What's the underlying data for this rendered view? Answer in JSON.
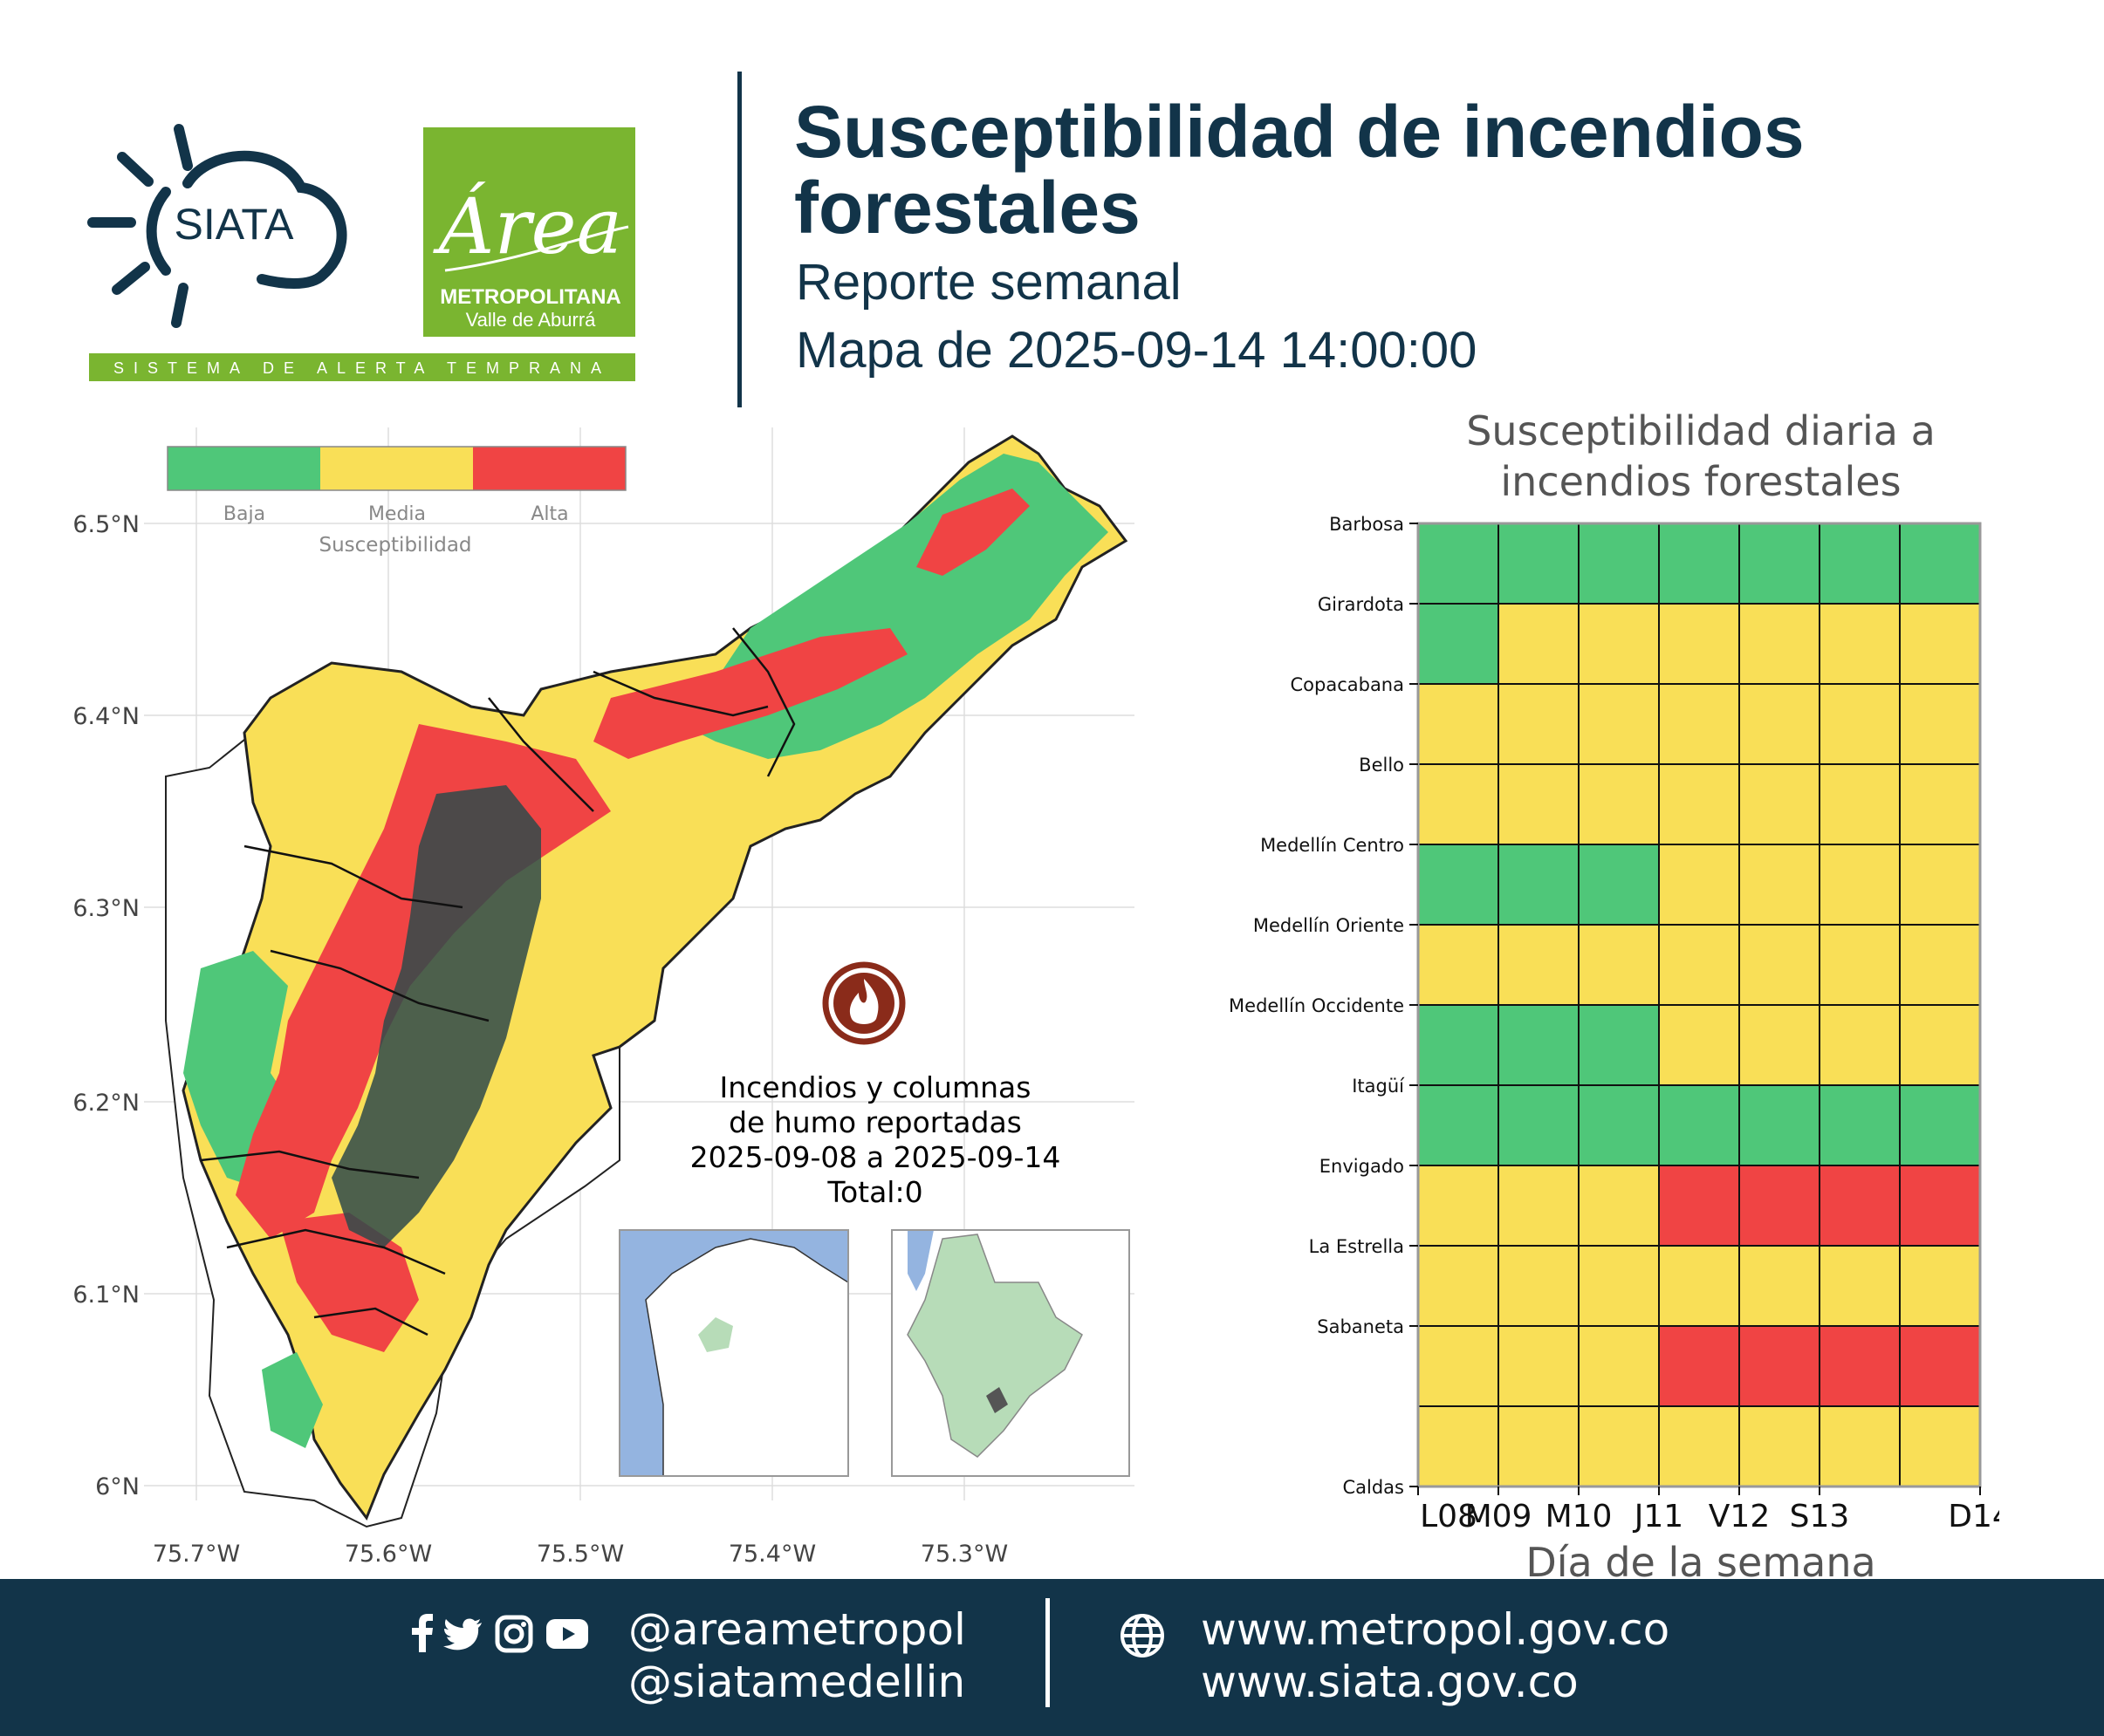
{
  "header": {
    "title": "Susceptibilidad de incendios forestales",
    "subtitle": "Reporte semanal",
    "date_label": "Mapa de 2025-09-14 14:00:00",
    "siata_logo_text": "SIATA",
    "siata_tagline": "SISTEMA DE ALERTA TEMPRANA",
    "area_logo_text": "Área",
    "area_logo_line1": "METROPOLITANA",
    "area_logo_line2": "Valle de Aburrá"
  },
  "colors": {
    "navy": "#123449",
    "baja": "#4fc779",
    "media": "#f9df57",
    "alta": "#f04444",
    "brand_green": "#7ab530"
  },
  "map": {
    "legend": {
      "title": "Susceptibilidad",
      "items": [
        {
          "label": "Baja",
          "color": "#4fc779"
        },
        {
          "label": "Media",
          "color": "#f9df57"
        },
        {
          "label": "Alta",
          "color": "#f04444"
        }
      ]
    },
    "lat_ticks": [
      "6.5°N",
      "6.4°N",
      "6.3°N",
      "6.2°N",
      "6.1°N",
      "6°N"
    ],
    "lon_ticks": [
      "75.7°W",
      "75.6°W",
      "75.5°W",
      "75.4°W",
      "75.3°W"
    ],
    "fire_icon": "fire-circle-icon",
    "fires_caption": [
      "Incendios y columnas",
      "de humo reportadas",
      "2025-09-08 a 2025-09-14",
      "Total:0"
    ],
    "fires_total": 0
  },
  "chart_data": {
    "type": "heatmap",
    "title": "Susceptibilidad diaria a incendios forestales",
    "title_lines": [
      "Susceptibilidad diaria a",
      "incendios forestales"
    ],
    "xlabel": "Día de la semana",
    "ylabel": "",
    "x": [
      "L08",
      "M09",
      "M10",
      "J11",
      "V12",
      "S13",
      "D14"
    ],
    "y": [
      "Barbosa",
      "Girardota",
      "Copacabana",
      "Bello",
      "Medellín Centro",
      "Medellín Oriente",
      "Medellín Occidente",
      "Itagüí",
      "Envigado",
      "La Estrella",
      "Sabaneta",
      "Caldas"
    ],
    "levels": [
      "Baja",
      "Media",
      "Alta"
    ],
    "level_colors": {
      "Baja": "#4fc779",
      "Media": "#f9df57",
      "Alta": "#f04444"
    },
    "values": [
      [
        "Baja",
        "Baja",
        "Baja",
        "Baja",
        "Baja",
        "Baja",
        "Baja"
      ],
      [
        "Baja",
        "Media",
        "Media",
        "Media",
        "Media",
        "Media",
        "Media"
      ],
      [
        "Media",
        "Media",
        "Media",
        "Media",
        "Media",
        "Media",
        "Media"
      ],
      [
        "Media",
        "Media",
        "Media",
        "Media",
        "Media",
        "Media",
        "Media"
      ],
      [
        "Baja",
        "Baja",
        "Baja",
        "Media",
        "Media",
        "Media",
        "Media"
      ],
      [
        "Media",
        "Media",
        "Media",
        "Media",
        "Media",
        "Media",
        "Media"
      ],
      [
        "Baja",
        "Baja",
        "Baja",
        "Media",
        "Media",
        "Media",
        "Media"
      ],
      [
        "Baja",
        "Baja",
        "Baja",
        "Baja",
        "Baja",
        "Baja",
        "Baja"
      ],
      [
        "Media",
        "Media",
        "Media",
        "Alta",
        "Alta",
        "Alta",
        "Alta"
      ],
      [
        "Media",
        "Media",
        "Media",
        "Media",
        "Media",
        "Media",
        "Media"
      ],
      [
        "Media",
        "Media",
        "Media",
        "Alta",
        "Alta",
        "Alta",
        "Alta"
      ],
      [
        "Media",
        "Media",
        "Media",
        "Media",
        "Media",
        "Media",
        "Media"
      ]
    ]
  },
  "footer": {
    "social_icons": [
      "facebook-icon",
      "twitter-icon",
      "instagram-icon",
      "youtube-icon"
    ],
    "handles": [
      "@areametropol",
      "@siatamedellin"
    ],
    "web_icon": "globe-icon",
    "urls": [
      "www.metropol.gov.co",
      "www.siata.gov.co"
    ]
  }
}
